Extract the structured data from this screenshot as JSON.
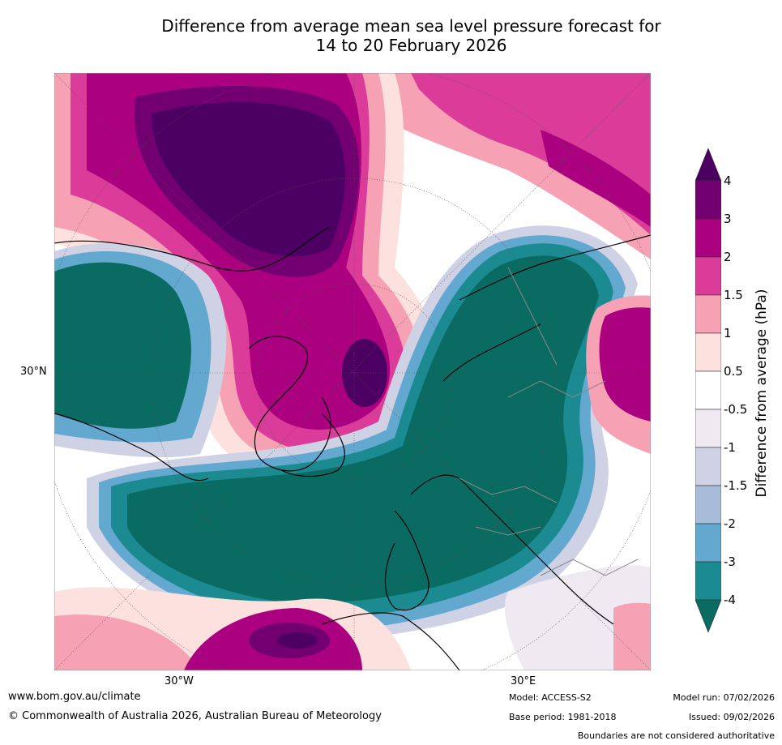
{
  "title": {
    "line1": "Difference from average mean sea level pressure forecast for",
    "line2": "14 to 20 February 2026"
  },
  "map": {
    "lat_label": "30°N",
    "lon_labels": [
      "30°W",
      "30°E"
    ]
  },
  "colorbar": {
    "label": "Difference from average (hPa)",
    "ticks": [
      "4",
      "3",
      "2",
      "1.5",
      "1",
      "0.5",
      "-0.5",
      "-1",
      "-1.5",
      "-2",
      "-3",
      "-4"
    ],
    "colors": [
      "#4b0062",
      "#730070",
      "#ab007f",
      "#db3b99",
      "#f7a1b5",
      "#fde1de",
      "#ffffff",
      "#efe9f2",
      "#cfd1e5",
      "#a7bcd8",
      "#63a8cf",
      "#1b8b91",
      "#0a6b62"
    ]
  },
  "footer": {
    "website": "www.bom.gov.au/climate",
    "copyright": "© Commonwealth of Australia 2026, Australian Bureau of Meteorology",
    "model": "Model: ACCESS-S2",
    "base_period": "Base period: 1981-2018",
    "model_run": "Model run: 07/02/2026",
    "issued": "Issued: 09/02/2026",
    "disclaimer": "Boundaries are not considered authoritative"
  }
}
